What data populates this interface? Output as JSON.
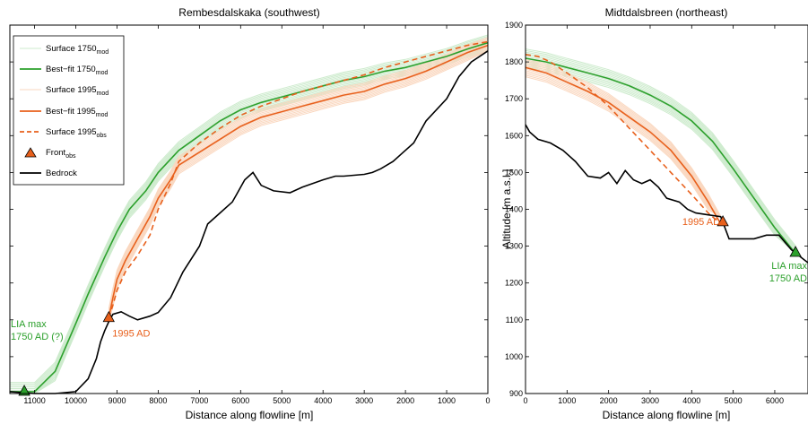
{
  "colors": {
    "mod1750": "#2ca02c",
    "mod1750_ens": "#cdebcd",
    "mod1995": "#e8601c",
    "mod1995_ens": "#fad7bf",
    "bedrock": "#000000",
    "front_1750": "#2ca02c",
    "front_1995": "#e8601c"
  },
  "chart_data": [
    {
      "type": "line",
      "title": "Rembesdalskaka (southwest)",
      "xlabel": "Distance along flowline [m]",
      "ylabel": "",
      "x_reversed": true,
      "xlim": [
        11600,
        0
      ],
      "ylim": [
        900,
        1900
      ],
      "x_ticks": [
        11000,
        10000,
        9000,
        8000,
        7000,
        6000,
        5000,
        4000,
        3000,
        2000,
        1000,
        0
      ],
      "legend": {
        "position": "top-left",
        "items": [
          {
            "label": "Surface 1750",
            "sub": "mod",
            "key": "surf1750"
          },
          {
            "label": "Best−fit 1750",
            "sub": "mod",
            "key": "best1750"
          },
          {
            "label": "Surface 1995",
            "sub": "mod",
            "key": "surf1995"
          },
          {
            "label": "Best−fit 1995",
            "sub": "mod",
            "key": "best1995"
          },
          {
            "label": "Surface 1995",
            "sub": "obs",
            "key": "obs1995"
          },
          {
            "label": "Front",
            "sub": "obs",
            "key": "front"
          },
          {
            "label": "Bedrock",
            "sub": "",
            "key": "bedrock"
          }
        ]
      },
      "series": [
        {
          "key": "bedrock",
          "x": [
            11600,
            11000,
            10500,
            10000,
            9700,
            9500,
            9400,
            9300,
            9200,
            9100,
            8900,
            8700,
            8500,
            8200,
            8000,
            7700,
            7400,
            7000,
            6800,
            6500,
            6200,
            6100,
            5900,
            5700,
            5500,
            5200,
            4800,
            4500,
            4000,
            3700,
            3500,
            3000,
            2800,
            2600,
            2300,
            2100,
            1800,
            1500,
            1000,
            700,
            400,
            0
          ],
          "y": [
            905,
            900,
            900,
            905,
            940,
            995,
            1040,
            1070,
            1095,
            1115,
            1122,
            1110,
            1100,
            1110,
            1120,
            1160,
            1230,
            1300,
            1360,
            1390,
            1420,
            1440,
            1480,
            1500,
            1465,
            1450,
            1445,
            1460,
            1480,
            1490,
            1490,
            1495,
            1500,
            1510,
            1530,
            1550,
            1580,
            1640,
            1700,
            1760,
            1800,
            1830
          ]
        },
        {
          "key": "best1750",
          "x": [
            11600,
            11000,
            10500,
            10000,
            9700,
            9300,
            9000,
            8700,
            8300,
            8000,
            7500,
            7000,
            6500,
            6000,
            5500,
            5000,
            4500,
            4000,
            3500,
            3000,
            2500,
            2000,
            1500,
            1000,
            500,
            0
          ],
          "y": [
            905,
            905,
            960,
            1090,
            1170,
            1270,
            1340,
            1400,
            1450,
            1500,
            1560,
            1600,
            1640,
            1670,
            1690,
            1705,
            1720,
            1735,
            1750,
            1760,
            1775,
            1785,
            1800,
            1815,
            1835,
            1852
          ]
        },
        {
          "key": "best1995",
          "x": [
            9200,
            9100,
            9000,
            8800,
            8500,
            8200,
            8000,
            7700,
            7500,
            7000,
            6500,
            6000,
            5500,
            5000,
            4500,
            4000,
            3500,
            3000,
            2500,
            2000,
            1500,
            1000,
            500,
            0
          ],
          "y": [
            1105,
            1160,
            1210,
            1260,
            1320,
            1380,
            1430,
            1480,
            1520,
            1555,
            1590,
            1625,
            1650,
            1665,
            1680,
            1695,
            1710,
            1720,
            1740,
            1755,
            1775,
            1800,
            1825,
            1845
          ]
        },
        {
          "key": "obs1995",
          "x": [
            9200,
            9100,
            9000,
            8800,
            8500,
            8200,
            8000,
            7700,
            7500,
            7000,
            6500,
            6000,
            5500,
            5000,
            4500,
            4000,
            3500,
            3000,
            2500,
            2000,
            1500,
            1000,
            500,
            0
          ],
          "y": [
            1105,
            1140,
            1180,
            1230,
            1275,
            1330,
            1400,
            1470,
            1530,
            1580,
            1620,
            1655,
            1680,
            1700,
            1720,
            1735,
            1750,
            1765,
            1785,
            1800,
            1815,
            1830,
            1845,
            1855
          ]
        }
      ],
      "fronts": [
        {
          "x": 11250,
          "y": 905,
          "color_key": "front_1750",
          "label": [
            "LIA max",
            "1750 AD (?)"
          ]
        },
        {
          "x": 9200,
          "y": 1105,
          "color_key": "front_1995",
          "label": [
            "1995 AD"
          ]
        }
      ]
    },
    {
      "type": "line",
      "title": "Midtdalsbreen (northeast)",
      "xlabel": "Distance along flowline [m]",
      "ylabel": "Altitude [m a.s.l.]",
      "xlim": [
        0,
        6800
      ],
      "ylim": [
        900,
        1900
      ],
      "x_ticks": [
        0,
        1000,
        2000,
        3000,
        4000,
        5000,
        6000
      ],
      "y_ticks": [
        900,
        1000,
        1100,
        1200,
        1300,
        1400,
        1500,
        1600,
        1700,
        1800,
        1900
      ],
      "series": [
        {
          "key": "bedrock",
          "x": [
            0,
            100,
            300,
            600,
            900,
            1200,
            1500,
            1800,
            2000,
            2200,
            2400,
            2600,
            2800,
            3000,
            3200,
            3400,
            3700,
            3900,
            4100,
            4400,
            4700,
            4900,
            5200,
            5500,
            5800,
            6100,
            6400,
            6800
          ],
          "y": [
            1630,
            1610,
            1590,
            1580,
            1560,
            1530,
            1490,
            1485,
            1500,
            1470,
            1505,
            1480,
            1470,
            1480,
            1460,
            1430,
            1420,
            1400,
            1390,
            1385,
            1380,
            1320,
            1320,
            1320,
            1330,
            1330,
            1290,
            1255
          ]
        },
        {
          "key": "best1750",
          "x": [
            0,
            500,
            1000,
            1500,
            2000,
            2500,
            3000,
            3500,
            4000,
            4500,
            5000,
            5500,
            6000,
            6500
          ],
          "y": [
            1810,
            1800,
            1785,
            1770,
            1755,
            1735,
            1710,
            1680,
            1640,
            1585,
            1510,
            1430,
            1350,
            1280
          ]
        },
        {
          "key": "best1995",
          "x": [
            0,
            500,
            1000,
            1500,
            2000,
            2500,
            3000,
            3500,
            4000,
            4400,
            4700
          ],
          "y": [
            1785,
            1770,
            1745,
            1720,
            1690,
            1650,
            1610,
            1560,
            1490,
            1420,
            1360
          ]
        },
        {
          "key": "obs1995",
          "x": [
            0,
            300,
            600,
            1000,
            1500,
            2000,
            2500,
            3000,
            3500,
            4000,
            4400,
            4700
          ],
          "y": [
            1820,
            1815,
            1800,
            1770,
            1730,
            1680,
            1620,
            1560,
            1500,
            1440,
            1390,
            1360
          ]
        }
      ],
      "fronts": [
        {
          "x": 4750,
          "y": 1365,
          "color_key": "front_1995",
          "label": [
            "1995 AD"
          ]
        },
        {
          "x": 6500,
          "y": 1282,
          "color_key": "front_1750",
          "label": [
            "LIA max",
            "1750 AD"
          ]
        }
      ]
    }
  ]
}
